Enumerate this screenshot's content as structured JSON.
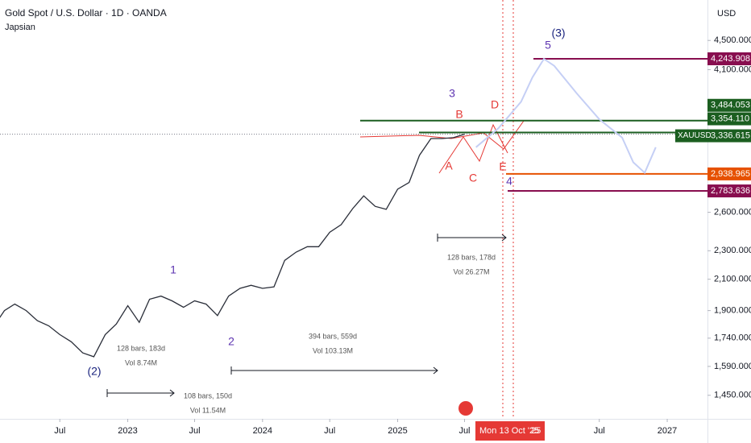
{
  "chart_data": {
    "type": "line",
    "title": "Gold Spot / U.S. Dollar · 1D · OANDA",
    "subtitle": "Japsian",
    "currency": "USD",
    "log_scale": true,
    "ylim": [
      1345,
      5120
    ],
    "yticks": [
      {
        "value": 1450,
        "label": "1,450.000"
      },
      {
        "value": 1590,
        "label": "1,590.000"
      },
      {
        "value": 1740,
        "label": "1,740.000"
      },
      {
        "value": 1900,
        "label": "1,900.000"
      },
      {
        "value": 2100,
        "label": "2,100.000"
      },
      {
        "value": 2300,
        "label": "2,300.000"
      },
      {
        "value": 2600,
        "label": "2,600.000"
      },
      {
        "value": 4100,
        "label": "4,100.000"
      },
      {
        "value": 4500,
        "label": "4,500.000"
      }
    ],
    "xlim": [
      "2022-01-20",
      "2027-04-20"
    ],
    "xticks": [
      {
        "value": "2022-07",
        "label": "Jul"
      },
      {
        "value": "2023-01",
        "label": "2023"
      },
      {
        "value": "2023-07",
        "label": "Jul"
      },
      {
        "value": "2024-01",
        "label": "2024"
      },
      {
        "value": "2024-07",
        "label": "Jul"
      },
      {
        "value": "2025-01",
        "label": "2025"
      },
      {
        "value": "2025-07",
        "label": "Jul"
      },
      {
        "value": "2026-07",
        "label": "Jul"
      },
      {
        "value": "2027-01",
        "label": "2027"
      }
    ],
    "x_highlight": [
      "Mon 13 Oct '25",
      "25"
    ],
    "series": [
      {
        "color": "#2a2e39",
        "x": [
          "2022-01",
          "2022-02",
          "2022-03",
          "2022-04",
          "2022-05",
          "2022-06",
          "2022-07",
          "2022-08",
          "2022-09",
          "2022-10",
          "2022-11",
          "2022-12",
          "2023-01",
          "2023-02",
          "2023-03",
          "2023-04",
          "2023-05",
          "2023-06",
          "2023-07",
          "2023-08",
          "2023-09",
          "2023-10",
          "2023-11",
          "2023-12",
          "2024-01",
          "2024-02",
          "2024-03",
          "2024-04",
          "2024-05",
          "2024-06",
          "2024-07",
          "2024-08",
          "2024-09",
          "2024-10",
          "2024-11",
          "2024-12",
          "2025-01",
          "2025-02",
          "2025-03",
          "2025-04",
          "2025-05",
          "2025-06",
          "2025-07"
        ],
        "values": [
          1800,
          1900,
          1940,
          1900,
          1840,
          1810,
          1760,
          1720,
          1660,
          1640,
          1760,
          1820,
          1930,
          1830,
          1970,
          1990,
          1960,
          1920,
          1960,
          1940,
          1870,
          1990,
          2040,
          2060,
          2040,
          2050,
          2230,
          2290,
          2330,
          2330,
          2440,
          2500,
          2630,
          2740,
          2650,
          2625,
          2800,
          2860,
          3120,
          3290,
          3290,
          3300,
          3336
        ]
      },
      {
        "color": "#c5cff5",
        "x": [
          "2025-08",
          "2025-10",
          "2025-12",
          "2026-01",
          "2026-02",
          "2026-03",
          "2026-05",
          "2026-07",
          "2026-09",
          "2026-10",
          "2026-11",
          "2026-12"
        ],
        "values": [
          3200,
          3400,
          3700,
          4000,
          4243,
          4150,
          3800,
          3500,
          3300,
          3050,
          2950,
          3200
        ]
      }
    ],
    "levels": [
      {
        "value": 4243.908,
        "label": "4,243.908",
        "color": "#880e4f"
      },
      {
        "value": 3484.053,
        "label": "3,484.053",
        "color": "#1b5e20"
      },
      {
        "value": 3354.11,
        "label": "3,354.110",
        "color": "#1b5e20"
      },
      {
        "value": 3336.615,
        "label": "3,336.615",
        "color": "#1b5e20",
        "name": "XAUUSD"
      },
      {
        "value": 2938.965,
        "label": "2,938.965",
        "color": "#e65100"
      },
      {
        "value": 2783.636,
        "label": "2,783.636",
        "color": "#880e4f"
      }
    ],
    "waves": [
      "(2)",
      "1",
      "2",
      "3",
      "B",
      "A",
      "C",
      "D",
      "E",
      "4",
      "5",
      "(3)"
    ],
    "measures": [
      [
        "128 bars, 183d",
        "Vol 8.74M"
      ],
      [
        "108 bars, 150d",
        "Vol 11.54M"
      ],
      [
        "394 bars, 559d",
        "Vol 103.13M"
      ],
      [
        "128 bars, 178d",
        "Vol 26.27M"
      ]
    ]
  }
}
